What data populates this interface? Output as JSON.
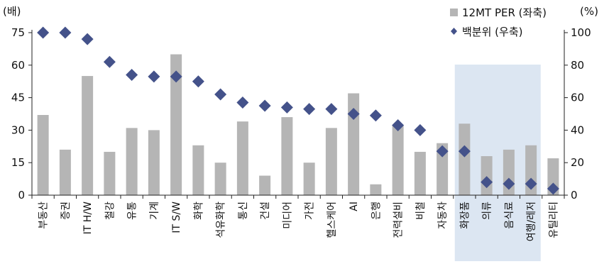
{
  "chart_data": {
    "type": "bar+scatter",
    "left_unit": "(배)",
    "right_unit": "(%)",
    "left_ylim": [
      0,
      75
    ],
    "right_ylim": [
      0,
      100
    ],
    "left_ticks": [
      0,
      15,
      30,
      45,
      60,
      75
    ],
    "right_ticks": [
      0,
      20,
      40,
      60,
      80,
      100
    ],
    "categories": [
      "부동산",
      "증권",
      "IT H/W",
      "철강",
      "유통",
      "기계",
      "IT S/W",
      "화학",
      "석유화학",
      "통신",
      "건설",
      "미디어",
      "가전",
      "헬스케어",
      "AI",
      "은행",
      "전력설비",
      "비철",
      "자동차",
      "화장품",
      "의류",
      "음식료",
      "여행/레저",
      "유틸리티"
    ],
    "series": [
      {
        "name": "12MT PER (좌축)",
        "type": "bar",
        "axis": "left",
        "color": "#b5b5b5",
        "values": [
          37,
          21,
          55,
          20,
          31,
          30,
          65,
          23,
          15,
          34,
          9,
          36,
          15,
          31,
          47,
          5,
          32,
          20,
          24,
          33,
          18,
          21,
          23,
          17
        ]
      },
      {
        "name": "백분위 (우축)",
        "type": "scatter",
        "marker": "diamond",
        "axis": "right",
        "color": "#44528a",
        "values": [
          100,
          100,
          96,
          82,
          74,
          73,
          73,
          70,
          62,
          57,
          55,
          54,
          53,
          53,
          50,
          49,
          43,
          40,
          27,
          27,
          8,
          7,
          7,
          4
        ]
      }
    ],
    "highlight": {
      "categories": [
        "화장품",
        "의류",
        "음식료",
        "여행/레저"
      ],
      "color": "#dce6f2"
    }
  }
}
